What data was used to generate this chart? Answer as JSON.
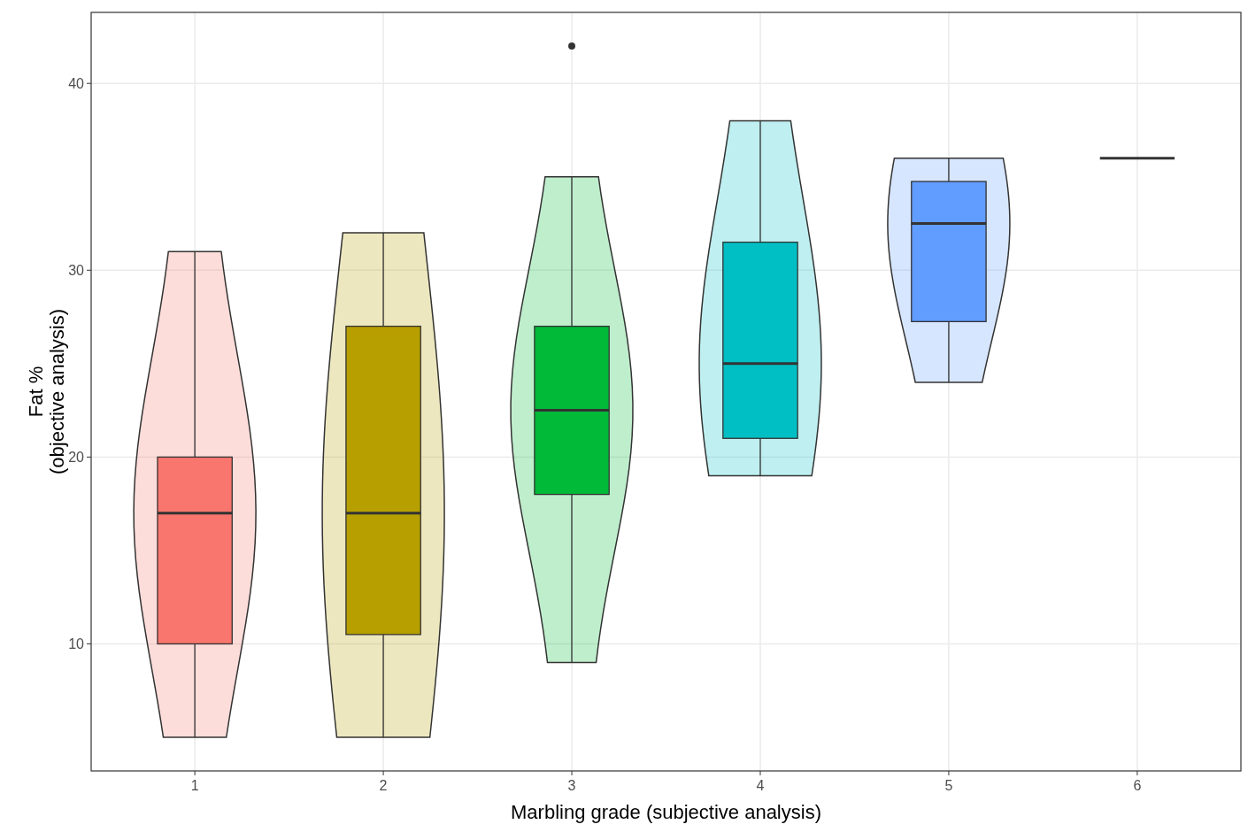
{
  "chart_data": {
    "type": "box",
    "xlabel": "Marbling grade (subjective analysis)",
    "ylabel": "Fat %\n(objective analysis)",
    "categories": [
      "1",
      "2",
      "3",
      "4",
      "5",
      "6"
    ],
    "colors": [
      "#f8766d",
      "#b79f00",
      "#00ba38",
      "#00bfc4",
      "#619cff",
      "#333333"
    ],
    "boxes": [
      {
        "low": 5,
        "q1": 10,
        "median": 17,
        "q3": 20,
        "high": 31
      },
      {
        "low": 5,
        "q1": 10.5,
        "median": 17,
        "q3": 27,
        "high": 32
      },
      {
        "low": 9,
        "q1": 18,
        "median": 22.5,
        "q3": 27,
        "high": 35,
        "outliers": [
          42
        ]
      },
      {
        "low": 19,
        "q1": 21,
        "median": 25,
        "q3": 31.5,
        "high": 38
      },
      {
        "low": 24,
        "q1": 27.25,
        "median": 32.5,
        "q3": 34.75,
        "high": 36
      },
      {
        "low": 36,
        "q1": 36,
        "median": 36,
        "q3": 36,
        "high": 36
      }
    ],
    "ylim": [
      3.2,
      43.8
    ],
    "yticks": [
      10,
      20,
      30,
      40
    ],
    "grid": true
  }
}
